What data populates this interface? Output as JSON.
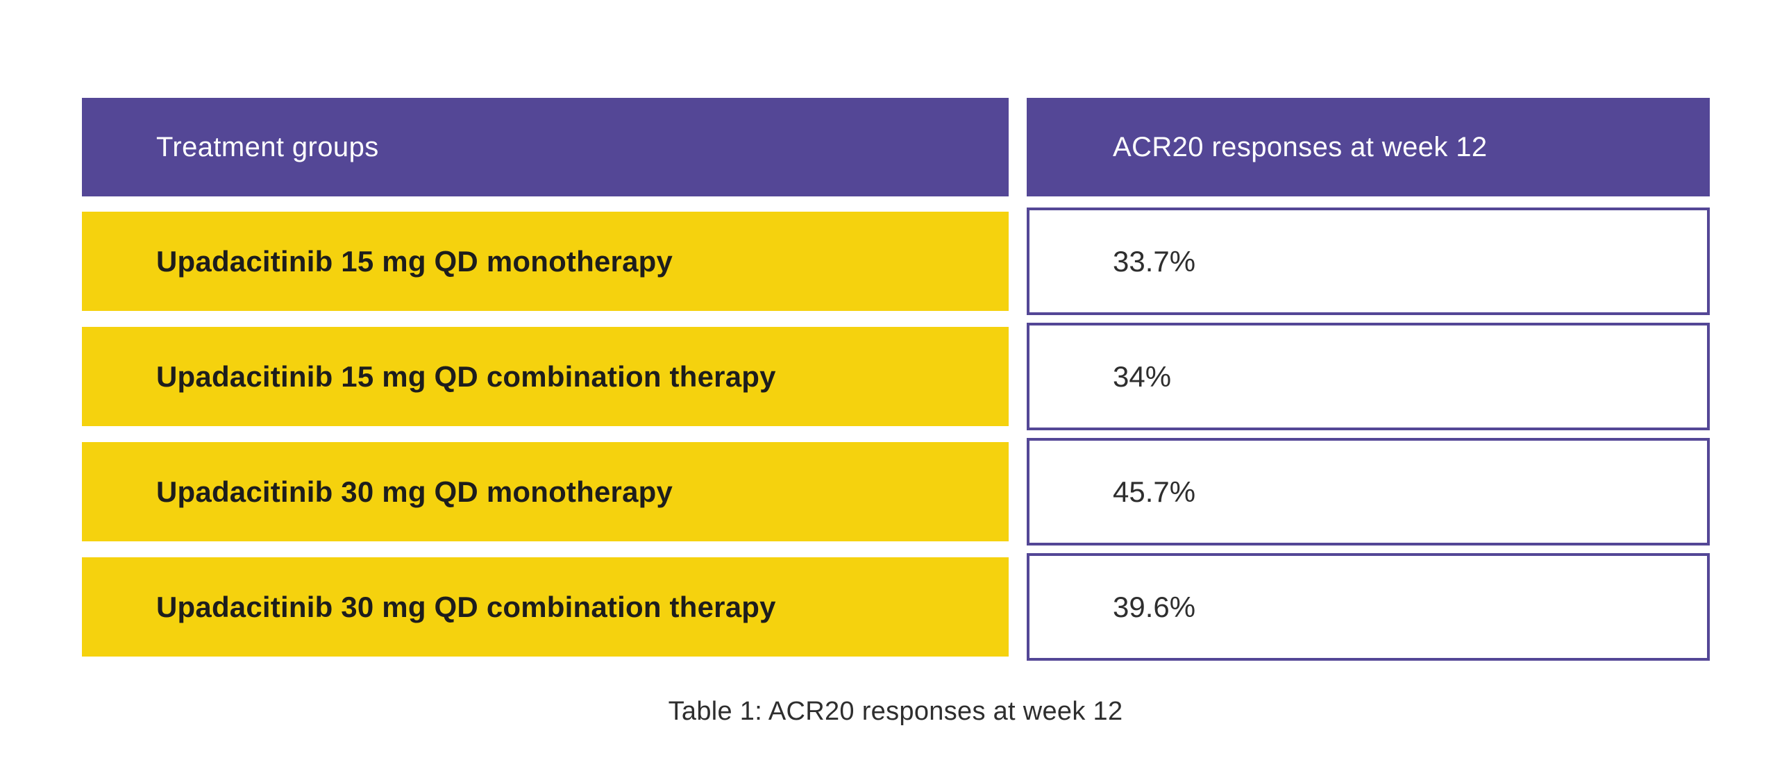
{
  "table": {
    "header": {
      "col1": "Treatment groups",
      "col2": "ACR20 responses at week 12"
    },
    "rows": [
      {
        "group": "Upadacitinib 15 mg QD monotherapy",
        "value": "33.7%"
      },
      {
        "group": "Upadacitinib 15 mg QD combination therapy",
        "value": "34%"
      },
      {
        "group": "Upadacitinib 30 mg QD monotherapy",
        "value": "45.7%"
      },
      {
        "group": "Upadacitinib 30 mg QD combination therapy",
        "value": "39.6%"
      }
    ],
    "caption": "Table 1: ACR20 responses at week 12"
  },
  "chart_data": {
    "type": "table",
    "title": "Table 1: ACR20 responses at week 12",
    "columns": [
      "Treatment groups",
      "ACR20 responses at week 12"
    ],
    "rows": [
      [
        "Upadacitinib 15 mg QD monotherapy",
        "33.7%"
      ],
      [
        "Upadacitinib 15 mg QD combination therapy",
        "34%"
      ],
      [
        "Upadacitinib 30 mg QD monotherapy",
        "45.7%"
      ],
      [
        "Upadacitinib 30 mg QD combination therapy",
        "39.6%"
      ]
    ],
    "values_numeric_percent": [
      33.7,
      34,
      45.7,
      39.6
    ]
  },
  "colors": {
    "purple": "#544796",
    "yellow": "#f5d20e",
    "header_text": "#ffffff",
    "group_text": "#1d1d1d",
    "value_text": "#2e2e2e"
  }
}
